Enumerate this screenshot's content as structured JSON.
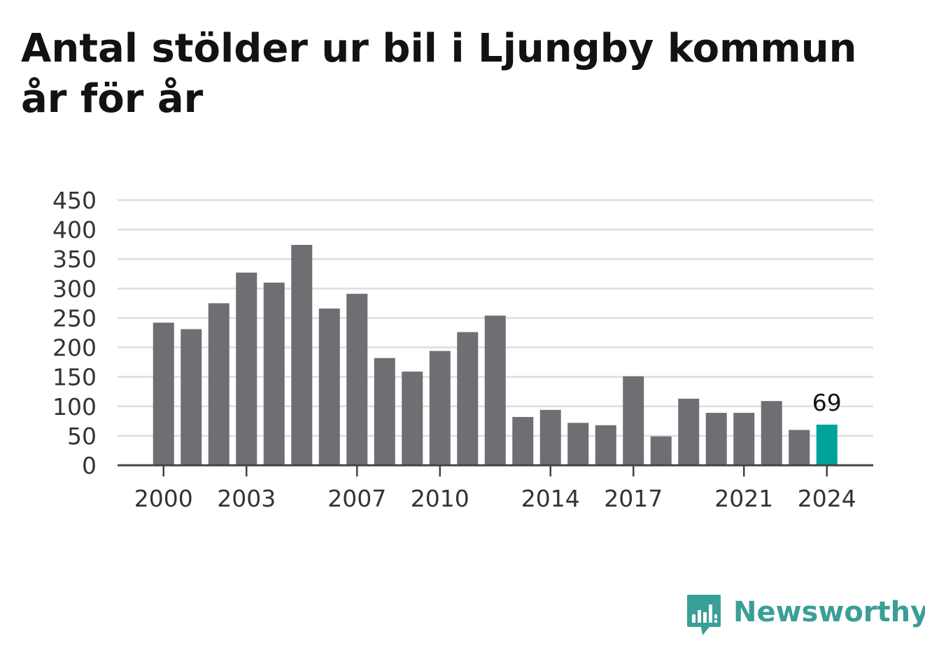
{
  "header": {
    "title_line1": "Antal stölder ur bil i Ljungby kommun",
    "title_line2": "år för år"
  },
  "brand": {
    "name": "Newsworthy",
    "icon": "newsworthy-logo-icon",
    "color": "#3a9f96"
  },
  "colors": {
    "bar": "#6f6e73",
    "highlight": "#00a399",
    "grid": "#dddddd",
    "axis": "#444444"
  },
  "chart_data": {
    "type": "bar",
    "title": "Antal stölder ur bil i Ljungby kommun år för år",
    "xlabel": "",
    "ylabel": "",
    "ylim": [
      0,
      450
    ],
    "yticks": [
      0,
      50,
      100,
      150,
      200,
      250,
      300,
      350,
      400,
      450
    ],
    "grid": true,
    "categories": [
      2000,
      2001,
      2002,
      2003,
      2004,
      2005,
      2006,
      2007,
      2008,
      2009,
      2010,
      2011,
      2012,
      2013,
      2014,
      2015,
      2016,
      2017,
      2018,
      2019,
      2020,
      2021,
      2022,
      2023,
      2024
    ],
    "xtick_labels": [
      "2000",
      "2003",
      "2007",
      "2010",
      "2014",
      "2017",
      "2021",
      "2024"
    ],
    "values": [
      242,
      231,
      275,
      327,
      310,
      374,
      266,
      291,
      182,
      159,
      194,
      226,
      254,
      82,
      94,
      72,
      68,
      151,
      49,
      113,
      89,
      89,
      109,
      60,
      69
    ],
    "highlight": {
      "category": 2024,
      "label": "69"
    }
  }
}
